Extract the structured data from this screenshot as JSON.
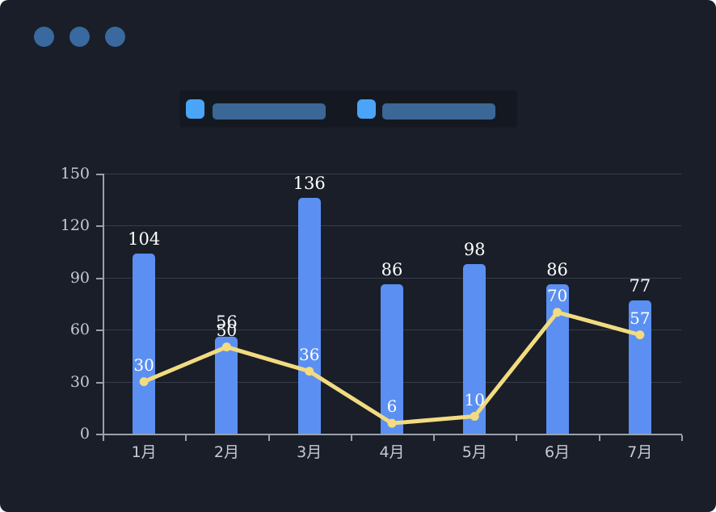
{
  "window": {
    "controls": [
      "dot",
      "dot",
      "dot"
    ],
    "control_color": "#39699e"
  },
  "legend": {
    "items": [
      {
        "name": "bar-series",
        "marker_color": "#4aa4f7",
        "label_bar_color": "#3a6795",
        "label_text": ""
      },
      {
        "name": "line-series",
        "marker_color": "#4aa4f7",
        "label_bar_color": "#3a6795",
        "label_text": ""
      }
    ]
  },
  "chart_data": {
    "type": "bar",
    "title": "",
    "xlabel": "",
    "ylabel": "",
    "categories": [
      "1月",
      "2月",
      "3月",
      "4月",
      "5月",
      "6月",
      "7月"
    ],
    "series": [
      {
        "name": "bar-series",
        "type": "bar",
        "values": [
          104,
          56,
          136,
          86,
          98,
          86,
          77
        ],
        "color": "#5b8ff2"
      },
      {
        "name": "line-series",
        "type": "line",
        "values": [
          30,
          50,
          36,
          6,
          10,
          70,
          57
        ],
        "color": "#f2db80"
      }
    ],
    "ylim": [
      0,
      150
    ],
    "yticks": [
      0,
      30,
      60,
      90,
      120,
      150
    ],
    "grid": true,
    "legend_position": "top",
    "value_labels": true
  },
  "colors": {
    "background": "#191e28",
    "gridline": "#383e49",
    "axis": "#9aa1ad",
    "tick_text": "#c6cad3",
    "value_text": "#ffffff"
  }
}
